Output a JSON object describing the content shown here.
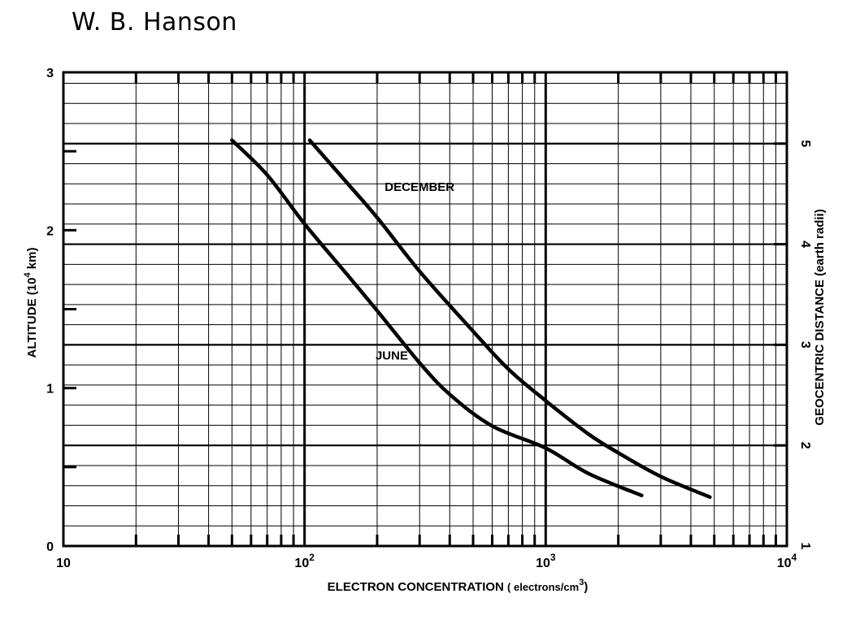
{
  "author": "W. B. Hanson",
  "chart_data": {
    "type": "line",
    "title": "",
    "xlabel": "ELECTRON CONCENTRATION",
    "xlabel_units": "( electrons/cm",
    "xlabel_units_exp": "3",
    "xlabel_units_close": ")",
    "xscale": "log",
    "xlim": [
      10,
      10000
    ],
    "x_tick_labels": [
      {
        "value": 10,
        "base": "10",
        "exp": ""
      },
      {
        "value": 100,
        "base": "10",
        "exp": "2"
      },
      {
        "value": 1000,
        "base": "10",
        "exp": "3"
      },
      {
        "value": 10000,
        "base": "10",
        "exp": "4"
      }
    ],
    "ylabel": "ALTITUDE (10",
    "ylabel_exp": "4",
    "ylabel_units": " km)",
    "ylim": [
      0,
      3
    ],
    "y_tick_labels": [
      {
        "value": 0,
        "text": "0"
      },
      {
        "value": 1,
        "text": "1"
      },
      {
        "value": 2,
        "text": "2"
      },
      {
        "value": 3,
        "text": "3"
      }
    ],
    "y2label": "GEOCENTRIC DISTANCE (earth radii)",
    "y2_tick_labels": [
      {
        "value": 1,
        "text": "1"
      },
      {
        "value": 2,
        "text": "2"
      },
      {
        "value": 3,
        "text": "3"
      },
      {
        "value": 4,
        "text": "4"
      },
      {
        "value": 5,
        "text": "5"
      }
    ],
    "grid": true,
    "series": [
      {
        "name": "DECEMBER",
        "points": [
          [
            105,
            2.57
          ],
          [
            150,
            2.3
          ],
          [
            200,
            2.08
          ],
          [
            300,
            1.74
          ],
          [
            500,
            1.36
          ],
          [
            700,
            1.12
          ],
          [
            1000,
            0.92
          ],
          [
            1500,
            0.71
          ],
          [
            2000,
            0.59
          ],
          [
            3000,
            0.44
          ],
          [
            4800,
            0.31
          ]
        ]
      },
      {
        "name": "JUNE",
        "points": [
          [
            50,
            2.57
          ],
          [
            70,
            2.35
          ],
          [
            100,
            2.04
          ],
          [
            150,
            1.72
          ],
          [
            200,
            1.49
          ],
          [
            300,
            1.16
          ],
          [
            400,
            0.96
          ],
          [
            600,
            0.76
          ],
          [
            1000,
            0.62
          ],
          [
            1500,
            0.46
          ],
          [
            2500,
            0.32
          ]
        ]
      }
    ]
  }
}
